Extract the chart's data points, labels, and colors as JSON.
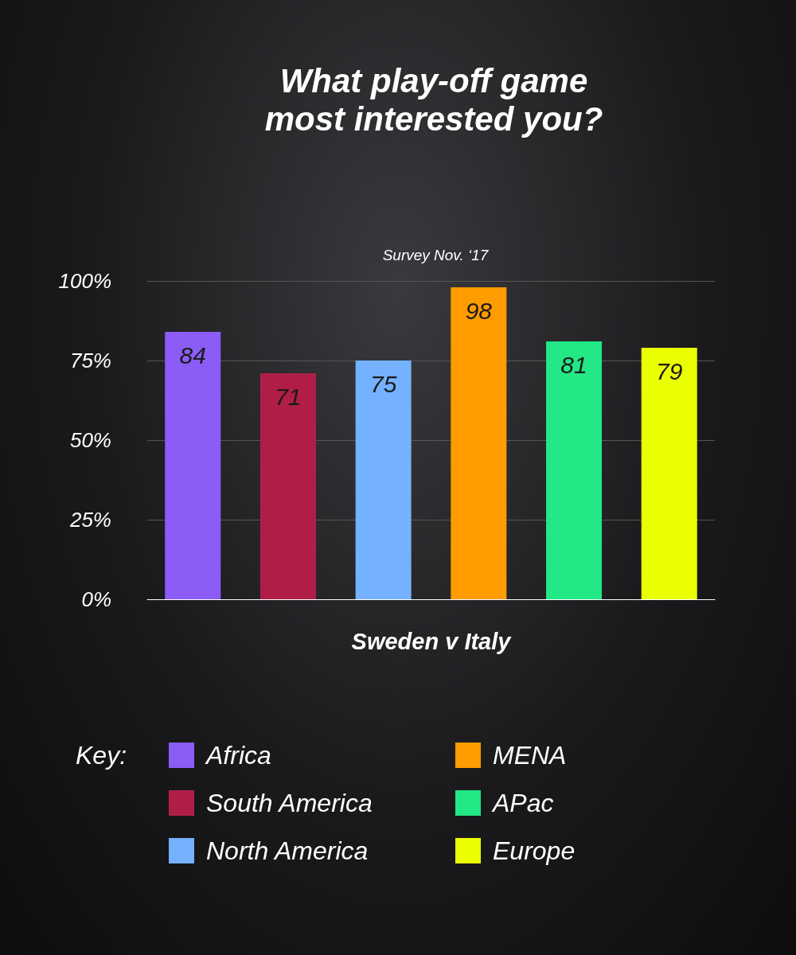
{
  "chart_data": {
    "type": "bar",
    "title": "What play-off game\nmost interested you?",
    "subtitle": "Survey Nov. ‘17",
    "categories": [
      "Sweden v Italy"
    ],
    "series": [
      {
        "name": "Africa",
        "color": "#8b5cf6",
        "values": [
          84
        ]
      },
      {
        "name": "South America",
        "color": "#b01e48",
        "values": [
          71
        ]
      },
      {
        "name": "North America",
        "color": "#74b1ff",
        "values": [
          75
        ]
      },
      {
        "name": "MENA",
        "color": "#ff9c00",
        "values": [
          98
        ]
      },
      {
        "name": "APac",
        "color": "#22e886",
        "values": [
          81
        ]
      },
      {
        "name": "Europe",
        "color": "#eaff00",
        "values": [
          79
        ]
      }
    ],
    "ylim": [
      0,
      100
    ],
    "yticks": [
      {
        "value": 0,
        "label": "0%"
      },
      {
        "value": 25,
        "label": "25%"
      },
      {
        "value": 50,
        "label": "50%"
      },
      {
        "value": 75,
        "label": "75%"
      },
      {
        "value": 100,
        "label": "100%"
      }
    ],
    "grid": "y",
    "data_labels": true,
    "legend": "bottom",
    "legend_title": "Key:"
  }
}
